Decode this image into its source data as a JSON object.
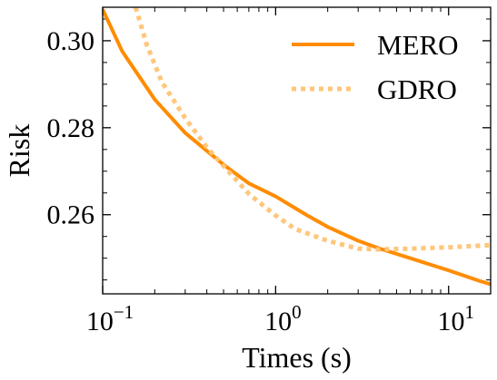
{
  "chart_data": {
    "type": "line",
    "xlabel": "Times (s)",
    "ylabel": "Risk",
    "xscale": "log",
    "xlim": [
      0.1,
      17.5
    ],
    "ylim": [
      0.2418,
      0.3077
    ],
    "x_ticks": [
      {
        "value": 0.1,
        "base": "10",
        "exp": "−1"
      },
      {
        "value": 1,
        "base": "10",
        "exp": "0"
      },
      {
        "value": 10,
        "base": "10",
        "exp": "1"
      }
    ],
    "y_ticks": [
      {
        "value": 0.26,
        "label": "0.26"
      },
      {
        "value": 0.28,
        "label": "0.28"
      },
      {
        "value": 0.3,
        "label": "0.30"
      }
    ],
    "legend_position": "top-right",
    "grid": false,
    "series": [
      {
        "name": "MERO",
        "style": "solid",
        "color": "#FF8C00",
        "points": [
          [
            0.1,
            0.3072
          ],
          [
            0.13,
            0.2975
          ],
          [
            0.2,
            0.2865
          ],
          [
            0.3,
            0.2788
          ],
          [
            0.5,
            0.2715
          ],
          [
            0.7,
            0.2672
          ],
          [
            1.0,
            0.2642
          ],
          [
            1.5,
            0.26
          ],
          [
            2.0,
            0.2572
          ],
          [
            3.0,
            0.254
          ],
          [
            4.0,
            0.2522
          ],
          [
            6.0,
            0.25
          ],
          [
            10.0,
            0.2472
          ],
          [
            15.0,
            0.2448
          ],
          [
            17.5,
            0.244
          ]
        ]
      },
      {
        "name": "GDRO",
        "style": "dotted",
        "color": "#FFC67A",
        "points": [
          [
            0.155,
            0.3077
          ],
          [
            0.18,
            0.299
          ],
          [
            0.22,
            0.2905
          ],
          [
            0.3,
            0.2822
          ],
          [
            0.4,
            0.2755
          ],
          [
            0.5,
            0.2712
          ],
          [
            0.7,
            0.2648
          ],
          [
            1.0,
            0.2598
          ],
          [
            1.3,
            0.2567
          ],
          [
            2.0,
            0.254
          ],
          [
            3.0,
            0.2522
          ],
          [
            4.0,
            0.252
          ],
          [
            6.0,
            0.2522
          ],
          [
            10.0,
            0.2525
          ],
          [
            17.5,
            0.253
          ]
        ]
      }
    ]
  }
}
